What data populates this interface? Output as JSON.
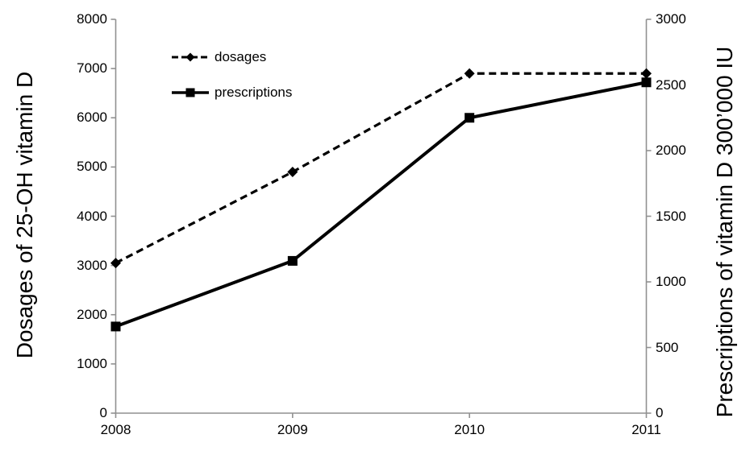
{
  "chart_data": {
    "type": "line",
    "title": "",
    "x": [
      2008,
      2009,
      2010,
      2011
    ],
    "x_ticks": [
      "2008",
      "2009",
      "2010",
      "2011"
    ],
    "series": [
      {
        "name": "dosages",
        "axis": "left",
        "style": "dashed",
        "marker": "diamond",
        "values": [
          3050,
          4900,
          6900,
          6900
        ]
      },
      {
        "name": "prescriptions",
        "axis": "right",
        "style": "solid",
        "marker": "square",
        "values": [
          660,
          1160,
          2250,
          2520
        ]
      }
    ],
    "left_axis": {
      "label": "Dosages of 25-OH vitamin D",
      "min": 0,
      "max": 8000,
      "step": 1000,
      "ticks": [
        "8000",
        "7000",
        "6000",
        "5000",
        "4000",
        "3000",
        "2000",
        "1000",
        "0"
      ]
    },
    "right_axis": {
      "label": "Prescriptions of vitamin D 300’000 IU",
      "min": 0,
      "max": 3000,
      "step": 500,
      "ticks": [
        "3000",
        "2500",
        "2000",
        "1500",
        "1000",
        "500",
        "0"
      ]
    },
    "legend": {
      "position": "top-left-inside",
      "entries": [
        "dosages",
        "prescriptions"
      ]
    },
    "grid": "off",
    "colors": {
      "series": "#000000",
      "axis": "#919191",
      "text": "#000000",
      "background": "#ffffff"
    }
  }
}
